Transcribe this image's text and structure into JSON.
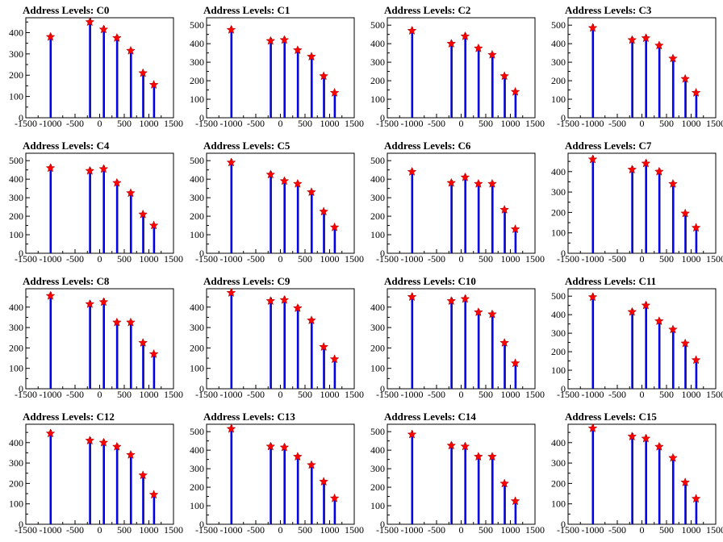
{
  "chart_data": {
    "type": "bar",
    "xlim": [
      -1500,
      1500
    ],
    "x_ticks": [
      -1500,
      -1000,
      -500,
      0,
      500,
      1000,
      1500
    ],
    "x_tick_labels": [
      "-1500",
      "-1000",
      "-500",
      "0",
      "500",
      "1000",
      "1500"
    ],
    "x_levels": [
      -1000,
      -200,
      80,
      350,
      630,
      880,
      1100
    ],
    "colors": {
      "bars": "#0000ff",
      "markers": "#ff0000",
      "spikes": "#000000",
      "axes": "#000000"
    },
    "marker": "red-star",
    "panels": [
      {
        "title": "Address Levels: C0",
        "ylim": [
          0,
          470
        ],
        "yticks": [
          0,
          100,
          200,
          300,
          400
        ],
        "peaks": [
          380,
          450,
          415,
          375,
          315,
          210,
          155
        ]
      },
      {
        "title": "Address Levels: C1",
        "ylim": [
          0,
          540
        ],
        "yticks": [
          0,
          100,
          200,
          300,
          400,
          500
        ],
        "peaks": [
          475,
          415,
          420,
          365,
          330,
          225,
          135
        ]
      },
      {
        "title": "Address Levels: C2",
        "ylim": [
          0,
          540
        ],
        "yticks": [
          0,
          100,
          200,
          300,
          400,
          500
        ],
        "peaks": [
          470,
          400,
          440,
          375,
          340,
          225,
          140
        ]
      },
      {
        "title": "Address Levels: C3",
        "ylim": [
          0,
          540
        ],
        "yticks": [
          0,
          100,
          200,
          300,
          400,
          500
        ],
        "peaks": [
          485,
          420,
          430,
          390,
          320,
          210,
          135
        ]
      },
      {
        "title": "Address Levels: C4",
        "ylim": [
          0,
          540
        ],
        "yticks": [
          0,
          100,
          200,
          300,
          400,
          500
        ],
        "peaks": [
          460,
          445,
          455,
          380,
          325,
          210,
          150
        ]
      },
      {
        "title": "Address Levels: C5",
        "ylim": [
          0,
          540
        ],
        "yticks": [
          0,
          100,
          200,
          300,
          400,
          500
        ],
        "peaks": [
          490,
          425,
          390,
          375,
          330,
          225,
          140
        ]
      },
      {
        "title": "Address Levels: C6",
        "ylim": [
          0,
          540
        ],
        "yticks": [
          0,
          100,
          200,
          300,
          400,
          500
        ],
        "peaks": [
          440,
          380,
          410,
          375,
          375,
          235,
          130
        ]
      },
      {
        "title": "Address Levels: C7",
        "ylim": [
          0,
          490
        ],
        "yticks": [
          0,
          100,
          200,
          300,
          400
        ],
        "peaks": [
          460,
          410,
          440,
          400,
          340,
          195,
          125
        ]
      },
      {
        "title": "Address Levels: C8",
        "ylim": [
          0,
          490
        ],
        "yticks": [
          0,
          100,
          200,
          300,
          400
        ],
        "peaks": [
          455,
          415,
          425,
          325,
          325,
          225,
          170
        ]
      },
      {
        "title": "Address Levels: C9",
        "ylim": [
          0,
          490
        ],
        "yticks": [
          0,
          100,
          200,
          300,
          400
        ],
        "peaks": [
          470,
          430,
          435,
          395,
          335,
          205,
          145
        ]
      },
      {
        "title": "Address Levels: C10",
        "ylim": [
          0,
          490
        ],
        "yticks": [
          0,
          100,
          200,
          300,
          400
        ],
        "peaks": [
          450,
          430,
          440,
          375,
          365,
          225,
          125
        ]
      },
      {
        "title": "Address Levels: C11",
        "ylim": [
          0,
          540
        ],
        "yticks": [
          0,
          100,
          200,
          300,
          400,
          500
        ],
        "peaks": [
          495,
          415,
          450,
          365,
          320,
          245,
          155
        ]
      },
      {
        "title": "Address Levels: C12",
        "ylim": [
          0,
          490
        ],
        "yticks": [
          0,
          100,
          200,
          300,
          400
        ],
        "peaks": [
          445,
          410,
          400,
          380,
          340,
          240,
          145
        ]
      },
      {
        "title": "Address Levels: C13",
        "ylim": [
          0,
          540
        ],
        "yticks": [
          0,
          100,
          200,
          300,
          400,
          500
        ],
        "peaks": [
          515,
          420,
          415,
          365,
          320,
          230,
          140
        ]
      },
      {
        "title": "Address Levels: C14",
        "ylim": [
          0,
          540
        ],
        "yticks": [
          0,
          100,
          200,
          300,
          400,
          500
        ],
        "peaks": [
          485,
          425,
          420,
          365,
          365,
          220,
          125
        ]
      },
      {
        "title": "Address Levels: C15",
        "ylim": [
          0,
          490
        ],
        "yticks": [
          0,
          100,
          200,
          300,
          400
        ],
        "peaks": [
          470,
          430,
          420,
          380,
          325,
          205,
          125
        ]
      }
    ]
  }
}
